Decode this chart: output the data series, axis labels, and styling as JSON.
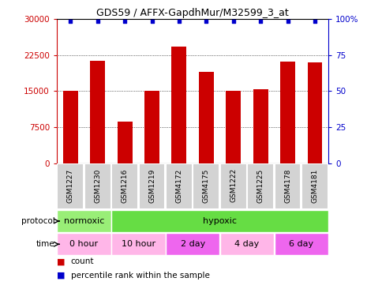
{
  "title": "GDS59 / AFFX-GapdhMur/M32599_3_at",
  "samples": [
    "GSM1227",
    "GSM1230",
    "GSM1216",
    "GSM1219",
    "GSM4172",
    "GSM4175",
    "GSM1222",
    "GSM1225",
    "GSM4178",
    "GSM4181"
  ],
  "counts": [
    15100,
    21200,
    8600,
    15100,
    24200,
    19000,
    15100,
    15400,
    21100,
    21000
  ],
  "percentiles": [
    99,
    99,
    99,
    99,
    99,
    99,
    99,
    99,
    99,
    99
  ],
  "ylim_left": [
    0,
    30000
  ],
  "ylim_right": [
    0,
    100
  ],
  "yticks_left": [
    0,
    7500,
    15000,
    22500,
    30000
  ],
  "yticks_right": [
    0,
    25,
    50,
    75,
    100
  ],
  "bar_color": "#CC0000",
  "dot_color": "#0000CC",
  "protocol_labels": [
    {
      "label": "normoxic",
      "start": 0,
      "end": 2,
      "color": "#99EE77"
    },
    {
      "label": "hypoxic",
      "start": 2,
      "end": 10,
      "color": "#66DD44"
    }
  ],
  "time_labels": [
    {
      "label": "0 hour",
      "start": 0,
      "end": 2,
      "color": "#FFB6E8"
    },
    {
      "label": "10 hour",
      "start": 2,
      "end": 4,
      "color": "#FFB6E8"
    },
    {
      "label": "2 day",
      "start": 4,
      "end": 6,
      "color": "#EE66EE"
    },
    {
      "label": "4 day",
      "start": 6,
      "end": 8,
      "color": "#FFB6E8"
    },
    {
      "label": "6 day",
      "start": 8,
      "end": 10,
      "color": "#EE66EE"
    }
  ],
  "sample_bg_color": "#D3D3D3",
  "legend_count_color": "#CC0000",
  "legend_percentile_color": "#0000CC"
}
